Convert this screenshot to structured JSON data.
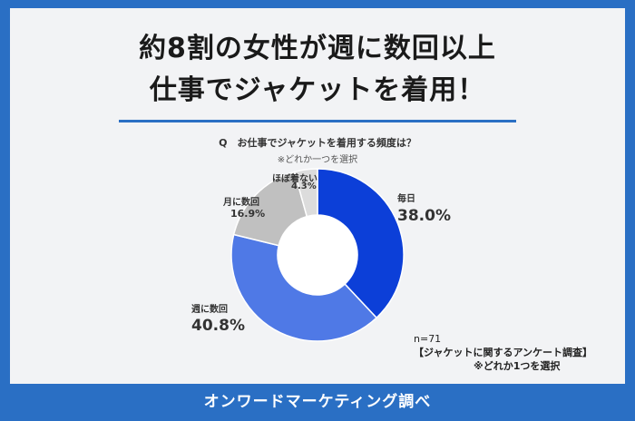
{
  "headline": {
    "line1": "約8割の女性が週に数回以上",
    "line2": "仕事でジャケットを着用！"
  },
  "chart_data": {
    "type": "pie",
    "title": "Q　お仕事でジャケットを着用する頻度は？",
    "subtitle": "※どれか一つを選択",
    "slices": [
      {
        "name": "毎日",
        "value": 38.0,
        "label": "38.0%",
        "color": "#0c3fd8"
      },
      {
        "name": "週に数回",
        "value": 40.8,
        "label": "40.8%",
        "color": "#4f79e6"
      },
      {
        "name": "月に数回",
        "value": 16.9,
        "label": "16.9%",
        "color": "#c0c0c0"
      },
      {
        "name": "ほぼ着ない",
        "value": 4.3,
        "label": "4.3%",
        "color": "#dcdcdc"
      }
    ]
  },
  "footnote": {
    "n": "n=71",
    "survey": "【ジャケットに関するアンケート調査】",
    "selection": "※どれか1つを選択"
  },
  "footer": {
    "credit": "オンワードマーケティング調べ"
  },
  "colors": {
    "frame": "#2a6fc4",
    "card": "#f2f3f5",
    "accent_rule": "#2a6fc4"
  }
}
